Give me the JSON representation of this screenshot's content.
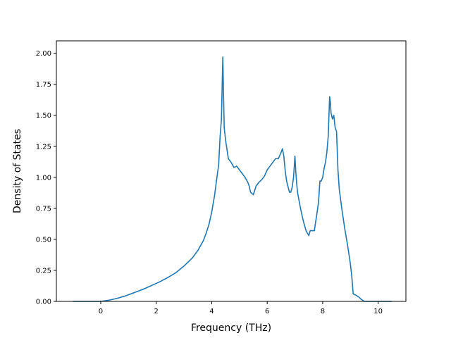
{
  "chart_data": {
    "type": "line",
    "title": "",
    "xlabel": "Frequency (THz)",
    "ylabel": "Density of States",
    "xlim": [
      -1.6,
      11.0
    ],
    "ylim": [
      0,
      2.1
    ],
    "grid": false,
    "legend": "none",
    "colors": {
      "line": "#1f77b4",
      "axes": "#000000",
      "background": "#ffffff"
    },
    "x_ticks": [
      0,
      2,
      4,
      6,
      8,
      10
    ],
    "x_tick_labels": [
      "0",
      "2",
      "4",
      "6",
      "8",
      "10"
    ],
    "y_ticks": [
      0.0,
      0.25,
      0.5,
      0.75,
      1.0,
      1.25,
      1.5,
      1.75,
      2.0
    ],
    "y_tick_labels": [
      "0.00",
      "0.25",
      "0.50",
      "0.75",
      "1.00",
      "1.25",
      "1.50",
      "1.75",
      "2.00"
    ],
    "series": [
      {
        "x": [
          -1.0,
          -0.5,
          0.0,
          0.3,
          0.6,
          0.9,
          1.2,
          1.5,
          1.8,
          2.1,
          2.4,
          2.7,
          3.0,
          3.3,
          3.5,
          3.7,
          3.8,
          3.9,
          4.0,
          4.1,
          4.2,
          4.25,
          4.3,
          4.35,
          4.4,
          4.45,
          4.5,
          4.6,
          4.7,
          4.8,
          4.9,
          5.0,
          5.1,
          5.2,
          5.3,
          5.35,
          5.4,
          5.5,
          5.6,
          5.7,
          5.8,
          5.9,
          6.0,
          6.1,
          6.2,
          6.3,
          6.4,
          6.5,
          6.55,
          6.6,
          6.65,
          6.7,
          6.8,
          6.85,
          6.9,
          6.95,
          7.0,
          7.03,
          7.07,
          7.1,
          7.2,
          7.3,
          7.4,
          7.5,
          7.55,
          7.7,
          7.8,
          7.85,
          7.9,
          7.95,
          8.0,
          8.05,
          8.1,
          8.15,
          8.2,
          8.25,
          8.28,
          8.3,
          8.35,
          8.4,
          8.45,
          8.5,
          8.55,
          8.6,
          8.7,
          8.8,
          8.9,
          9.0,
          9.05,
          9.1,
          9.2,
          9.3,
          9.4,
          9.5,
          9.6,
          10.0,
          10.5
        ],
        "y": [
          0.0,
          0.0,
          0.0,
          0.01,
          0.025,
          0.045,
          0.07,
          0.095,
          0.125,
          0.155,
          0.19,
          0.23,
          0.285,
          0.35,
          0.41,
          0.49,
          0.55,
          0.62,
          0.72,
          0.85,
          1.02,
          1.1,
          1.32,
          1.47,
          1.97,
          1.4,
          1.3,
          1.15,
          1.12,
          1.08,
          1.09,
          1.06,
          1.03,
          1.0,
          0.96,
          0.93,
          0.88,
          0.86,
          0.93,
          0.96,
          0.98,
          1.01,
          1.06,
          1.09,
          1.12,
          1.15,
          1.15,
          1.2,
          1.23,
          1.17,
          1.05,
          0.97,
          0.88,
          0.88,
          0.92,
          1.0,
          1.17,
          1.05,
          0.93,
          0.87,
          0.75,
          0.65,
          0.57,
          0.53,
          0.57,
          0.57,
          0.72,
          0.8,
          0.97,
          0.97,
          1.0,
          1.07,
          1.12,
          1.2,
          1.33,
          1.65,
          1.6,
          1.52,
          1.47,
          1.5,
          1.4,
          1.37,
          1.06,
          0.9,
          0.73,
          0.58,
          0.45,
          0.3,
          0.2,
          0.06,
          0.05,
          0.035,
          0.015,
          0.0,
          0.0,
          0.0,
          0.0
        ]
      }
    ]
  }
}
